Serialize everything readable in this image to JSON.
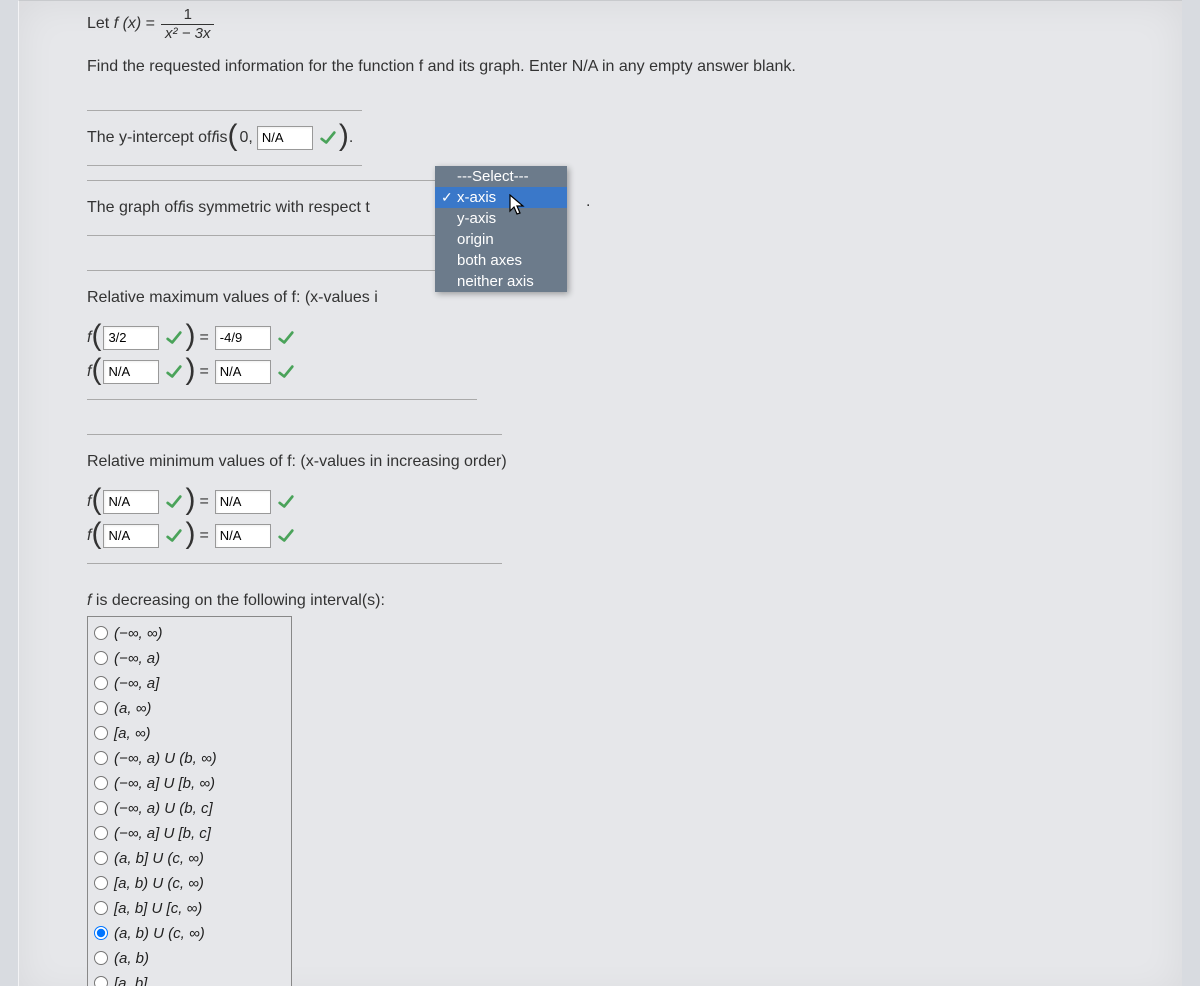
{
  "function_def": {
    "lhs_prefix": "Let ",
    "lhs_fx": "f (x)",
    "eq": " = ",
    "numerator": "1",
    "denominator_html": "x² − 3x"
  },
  "prompt2": "Find the requested information for the function f and its graph. Enter N/A in any empty answer blank.",
  "yint": {
    "prefix": "The y-intercept of ",
    "f_text": "f",
    "mid": " is ",
    "zero": "0,",
    "input_value": "N/A",
    "period": "."
  },
  "symmetry": {
    "prefix": "The graph of ",
    "f_text": "f",
    "mid": " is symmetric with respect t",
    "trailing_period": ".",
    "options": [
      {
        "label": "---Select---",
        "selected": false
      },
      {
        "label": "x-axis",
        "selected": true
      },
      {
        "label": "y-axis",
        "selected": false
      },
      {
        "label": "origin",
        "selected": false
      },
      {
        "label": "both axes",
        "selected": false
      },
      {
        "label": "neither axis",
        "selected": false
      }
    ]
  },
  "rel_max": {
    "heading": "Relative maximum values of f: (x-values i",
    "rows": [
      {
        "x": "3/2",
        "y": "-4/9"
      },
      {
        "x": "N/A",
        "y": "N/A"
      }
    ]
  },
  "rel_min": {
    "heading": "Relative minimum values of f: (x-values in increasing order)",
    "rows": [
      {
        "x": "N/A",
        "y": "N/A"
      },
      {
        "x": "N/A",
        "y": "N/A"
      }
    ]
  },
  "decreasing": {
    "heading": "f is decreasing on the following interval(s):",
    "options": [
      "(−∞, ∞)",
      "(−∞, a)",
      "(−∞, a]",
      "(a, ∞)",
      "[a, ∞)",
      "(−∞, a) U (b, ∞)",
      "(−∞, a] U [b, ∞)",
      "(−∞, a) U (b, c]",
      "(−∞, a] U [b, c]",
      "(a, b] U (c, ∞)",
      "[a, b) U (c, ∞)",
      "[a, b] U [c, ∞)",
      "(a, b) U (c, ∞)",
      "(a, b)",
      "[a, b]"
    ],
    "selected_index": 12
  },
  "colors": {
    "check_green": "#4aa35a",
    "dropdown_bg": "#6c7b8b",
    "highlight_bg": "#3a78c9"
  }
}
